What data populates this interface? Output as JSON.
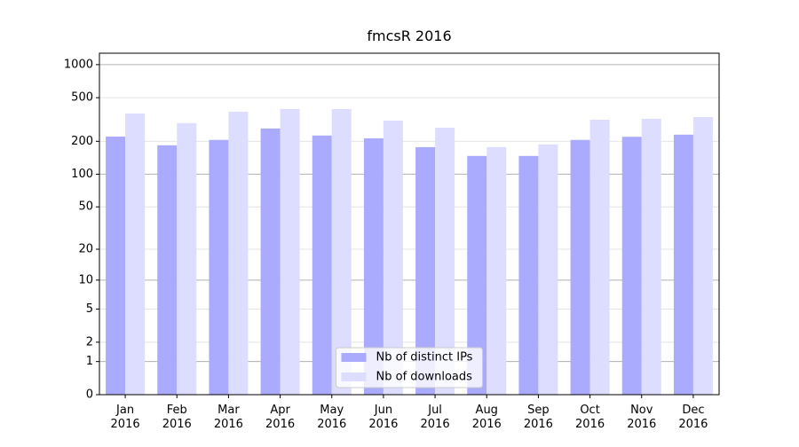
{
  "chart_data": {
    "type": "bar",
    "title": "fmcsR 2016",
    "categories": [
      "Jan\n2016",
      "Feb\n2016",
      "Mar\n2016",
      "Apr\n2016",
      "May\n2016",
      "Jun\n2016",
      "Jul\n2016",
      "Aug\n2016",
      "Sep\n2016",
      "Oct\n2016",
      "Nov\n2016",
      "Dec\n2016"
    ],
    "series": [
      {
        "name": "Nb of distinct IPs",
        "color": "#aaaaff",
        "values": [
          221,
          184,
          206,
          262,
          226,
          213,
          177,
          147,
          147,
          206,
          220,
          230
        ]
      },
      {
        "name": "Nb of downloads",
        "color": "#ddddff",
        "values": [
          359,
          293,
          373,
          394,
          394,
          309,
          266,
          177,
          187,
          315,
          321,
          333
        ]
      }
    ],
    "yscale": "log1p",
    "ylim": [
      0,
      1270
    ],
    "yticks": [
      0,
      1,
      2,
      5,
      10,
      20,
      50,
      100,
      200,
      500,
      1000
    ],
    "grid": true,
    "legend": "lower center"
  }
}
